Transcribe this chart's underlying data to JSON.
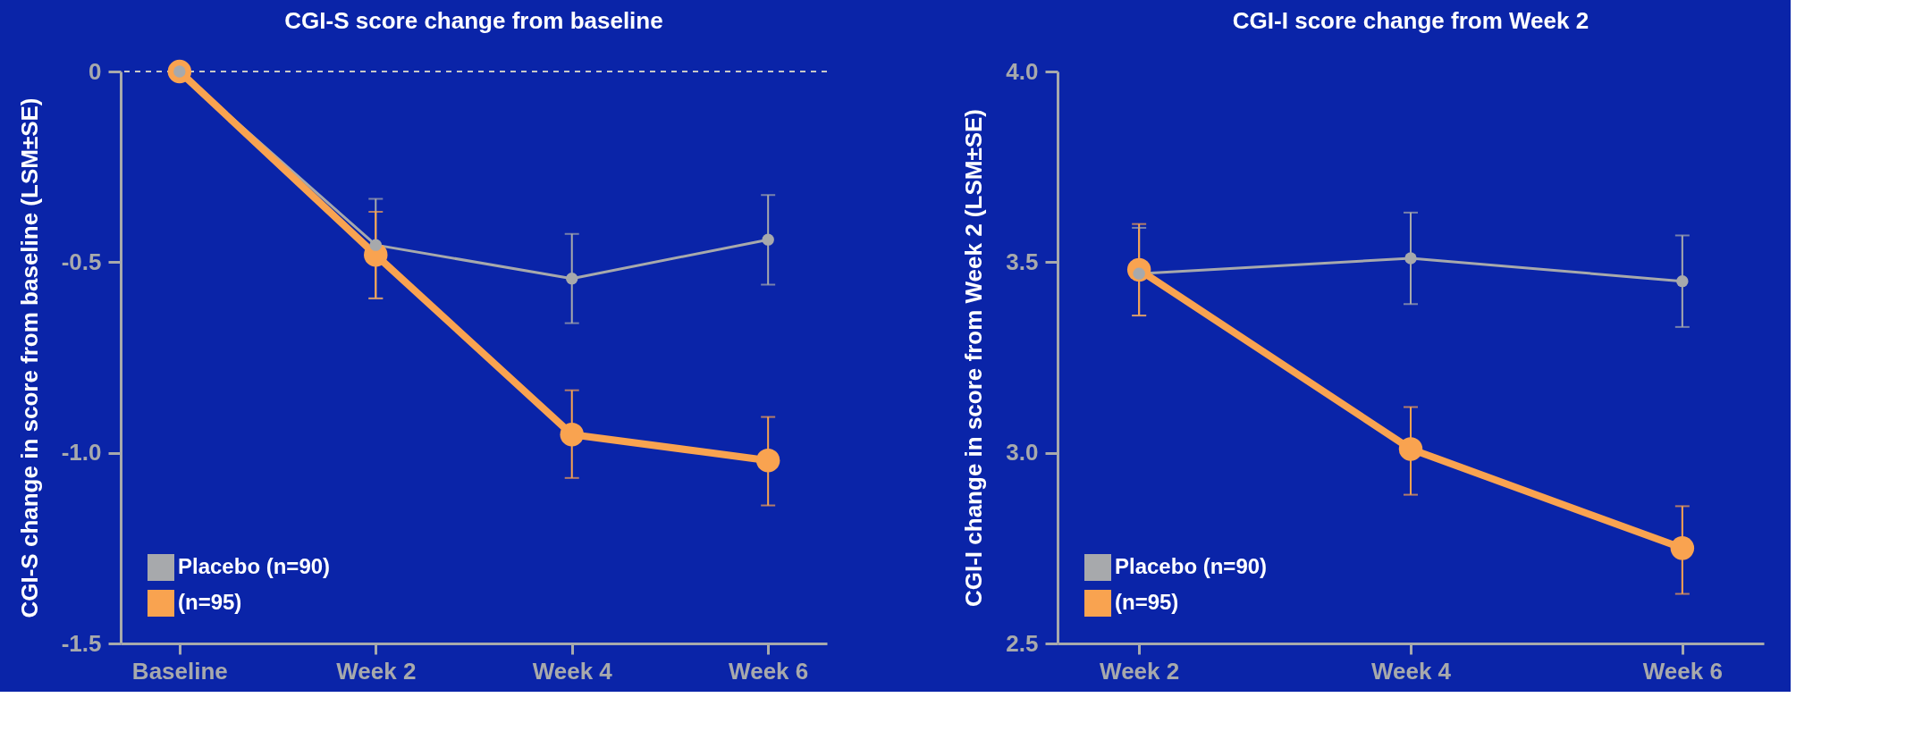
{
  "chart_data": [
    {
      "type": "line",
      "title": "CGI-S score change from baseline",
      "ylabel": "CGI-S change in score from baseline (LSM±SE)",
      "categories": [
        "Baseline",
        "Week 2",
        "Week 4",
        "Week 6"
      ],
      "ylim": [
        -1.5,
        0
      ],
      "yticks": [
        {
          "value": -1.5,
          "label": "-1.5"
        },
        {
          "value": -1,
          "label": "-1.0"
        },
        {
          "value": -0.5,
          "label": "-0.5"
        },
        0
      ],
      "grid": false,
      "legend": "bottom left",
      "marker": "circle",
      "ref_lines": [
        {
          "axis": "y",
          "value": 0,
          "line_style": "dashed",
          "color": "#c8c8c8"
        }
      ],
      "series": [
        {
          "name": "Placebo (n=90)",
          "color": "#a7a9ac",
          "values": [
            0,
            -0.455,
            -0.543,
            -0.441
          ],
          "errors": [
            null,
            [
              -0.595,
              -0.334
            ],
            [
              -0.66,
              -0.426
            ],
            [
              -0.559,
              -0.324
            ]
          ]
        },
        {
          "name": "(n=95)",
          "color": "#f9a350",
          "values": [
            0,
            -0.481,
            -0.952,
            -1.02
          ],
          "errors": [
            null,
            [
              -0.595,
              -0.368
            ],
            [
              -1.066,
              -0.836
            ],
            [
              -1.138,
              -0.906
            ]
          ]
        }
      ]
    },
    {
      "type": "line",
      "title": "CGI-I score change from Week 2",
      "ylabel": "CGI-I change in score from Week 2 (LSM±SE)",
      "categories": [
        "Week 2",
        "Week 4",
        "Week 6"
      ],
      "ylim": [
        2.5,
        4.0
      ],
      "yticks": [
        2.5,
        {
          "value": 3,
          "label": "3.0"
        },
        3.5,
        {
          "value": 4,
          "label": "4.0"
        }
      ],
      "grid": false,
      "legend": "bottom left",
      "marker": "circle",
      "series": [
        {
          "name": "Placebo (n=90)",
          "color": "#a7a9ac",
          "values": [
            3.47,
            3.51,
            3.45
          ],
          "errors": [
            [
              3.36,
              3.59
            ],
            [
              3.39,
              3.63
            ],
            [
              3.33,
              3.57
            ]
          ]
        },
        {
          "name": "(n=95)",
          "color": "#f9a350",
          "values": [
            3.48,
            3.01,
            2.75
          ],
          "errors": [
            [
              3.36,
              3.6
            ],
            [
              2.89,
              3.12
            ],
            [
              2.63,
              2.86
            ]
          ]
        }
      ]
    }
  ]
}
